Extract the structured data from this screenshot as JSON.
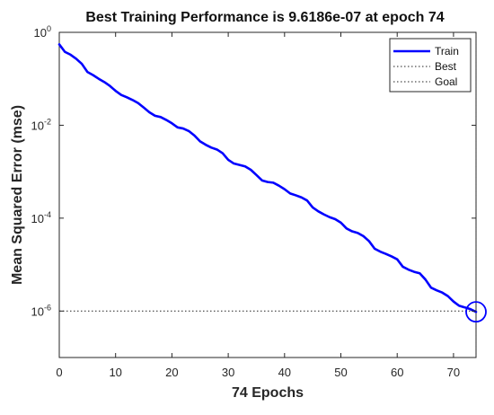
{
  "chart_data": {
    "type": "line",
    "title": "Best Training Performance is 9.6186e-07 at epoch 74",
    "xlabel": "74 Epochs",
    "ylabel": "Mean Squared Error  (mse)",
    "xlim": [
      0,
      74
    ],
    "ylim": [
      1e-07,
      1
    ],
    "yscale": "log",
    "grid": false,
    "legend_position": "top-right",
    "x_ticks": [
      "0",
      "10",
      "20",
      "30",
      "40",
      "50",
      "60",
      "70"
    ],
    "y_ticks": [
      {
        "base": "10",
        "exp": "0",
        "value": 1
      },
      {
        "base": "10",
        "exp": "-2",
        "value": 0.01
      },
      {
        "base": "10",
        "exp": "-4",
        "value": 0.0001
      },
      {
        "base": "10",
        "exp": "-6",
        "value": 1e-06
      }
    ],
    "series": [
      {
        "name": "Train",
        "color": "#0000ff",
        "style": "solid",
        "x": [
          0,
          1,
          2,
          3,
          4,
          5,
          6,
          7,
          8,
          9,
          10,
          11,
          12,
          13,
          14,
          15,
          16,
          17,
          18,
          19,
          20,
          21,
          22,
          23,
          24,
          25,
          26,
          27,
          28,
          29,
          30,
          31,
          32,
          33,
          34,
          35,
          36,
          37,
          38,
          39,
          40,
          41,
          42,
          43,
          44,
          45,
          46,
          47,
          48,
          49,
          50,
          51,
          52,
          53,
          54,
          55,
          56,
          57,
          58,
          59,
          60,
          61,
          62,
          63,
          64,
          65,
          66,
          67,
          68,
          69,
          70,
          71,
          72,
          73,
          74
        ],
        "y": [
          0.55,
          0.38,
          0.33,
          0.27,
          0.21,
          0.14,
          0.12,
          0.1,
          0.085,
          0.07,
          0.055,
          0.045,
          0.04,
          0.035,
          0.03,
          0.024,
          0.019,
          0.016,
          0.015,
          0.013,
          0.011,
          0.009,
          0.0085,
          0.0075,
          0.006,
          0.0045,
          0.0038,
          0.0033,
          0.003,
          0.0025,
          0.0018,
          0.0015,
          0.0014,
          0.0013,
          0.0011,
          0.00085,
          0.00065,
          0.0006,
          0.00058,
          0.0005,
          0.00042,
          0.00034,
          0.00031,
          0.00028,
          0.00024,
          0.00017,
          0.00014,
          0.00012,
          0.000105,
          9.5e-05,
          8e-05,
          6e-05,
          5.2e-05,
          4.8e-05,
          4.1e-05,
          3.2e-05,
          2.2e-05,
          1.9e-05,
          1.7e-05,
          1.5e-05,
          1.3e-05,
          9e-06,
          7.8e-06,
          7e-06,
          6.5e-06,
          4.8e-06,
          3.2e-06,
          2.8e-06,
          2.5e-06,
          2.1e-06,
          1.6e-06,
          1.3e-06,
          1.2e-06,
          1.1e-06,
          9.6186e-07
        ]
      },
      {
        "name": "Best",
        "color": "#222222",
        "style": "dotted",
        "points": [
          {
            "x": 74,
            "y": 1e-07
          },
          {
            "x": 74,
            "y": 1
          }
        ]
      },
      {
        "name": "Goal",
        "color": "#222222",
        "style": "dotted",
        "points": [
          {
            "x": 0,
            "y": 1e-06
          },
          {
            "x": 74,
            "y": 1e-06
          }
        ]
      }
    ],
    "best_marker": {
      "x": 74,
      "y": 9.6186e-07
    }
  }
}
